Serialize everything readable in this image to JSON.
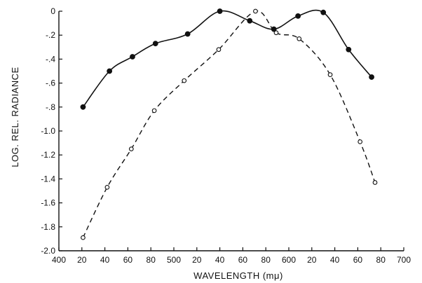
{
  "chart_data": {
    "type": "line",
    "title": "",
    "xlabel": "WAVELENGTH (mμ)",
    "ylabel": "LOG. REL. RADIANCE",
    "xlim": [
      400,
      700
    ],
    "ylim": [
      -2.0,
      0
    ],
    "x_ticks": [
      400,
      420,
      440,
      460,
      480,
      500,
      520,
      540,
      560,
      580,
      600,
      620,
      640,
      660,
      680,
      700
    ],
    "x_tick_labels": [
      "400",
      "20",
      "40",
      "60",
      "80",
      "500",
      "20",
      "40",
      "60",
      "80",
      "600",
      "20",
      "40",
      "60",
      "80",
      "700"
    ],
    "y_ticks": [
      0,
      -0.2,
      -0.4,
      -0.6,
      -0.8,
      -1.0,
      -1.2,
      -1.4,
      -1.6,
      -1.8,
      -2.0
    ],
    "y_tick_labels": [
      "0",
      "-.2",
      "-.4",
      "-.6",
      "-.8",
      "-1.0",
      "-1.2",
      "-1.4",
      "-1.6",
      "-1.8",
      "-2.0"
    ],
    "grid": false,
    "series": [
      {
        "style": "solid",
        "marker": "filled-circle",
        "x": [
          421,
          444,
          464,
          484,
          512,
          540,
          566,
          587,
          608,
          630,
          652,
          672
        ],
        "y": [
          -0.8,
          -0.5,
          -0.38,
          -0.27,
          -0.19,
          0,
          -0.08,
          -0.15,
          -0.04,
          -0.01,
          -0.32,
          -0.55
        ]
      },
      {
        "style": "dashed",
        "marker": "open-circle",
        "x": [
          421,
          442,
          463,
          483,
          509,
          539,
          571,
          589,
          609,
          636,
          662,
          675
        ],
        "y": [
          -1.89,
          -1.47,
          -1.15,
          -0.83,
          -0.58,
          -0.32,
          0,
          -0.18,
          -0.23,
          -0.53,
          -1.09,
          -1.43
        ]
      }
    ]
  }
}
